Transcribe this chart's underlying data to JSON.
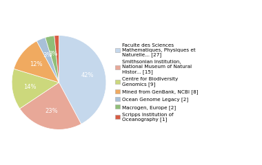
{
  "legend_labels": [
    "Faculte des Sciences\nMathematiques, Physiques et\nNaturelle... [27]",
    "Smithsonian Institution,\nNational Museum of Natural\nHistor... [15]",
    "Centre for Biodiversity\nGenomics [9]",
    "Mined from GenBank, NCBI [8]",
    "Ocean Genome Legacy [2]",
    "Macrogen, Europe [2]",
    "Scripps Institution of\nOceanography [1]"
  ],
  "values": [
    27,
    15,
    9,
    8,
    2,
    2,
    1
  ],
  "colors": [
    "#c5d8ec",
    "#e8a898",
    "#ccd87c",
    "#f0aa60",
    "#a8c0d8",
    "#90be78",
    "#d85c44"
  ],
  "pct_labels": [
    "42%",
    "23%",
    "14%",
    "12%",
    "3%",
    "3%",
    ""
  ],
  "background_color": "#ffffff",
  "startangle": 90,
  "text_color": "#ffffff",
  "font_size": 6.0,
  "legend_font_size": 5.2
}
